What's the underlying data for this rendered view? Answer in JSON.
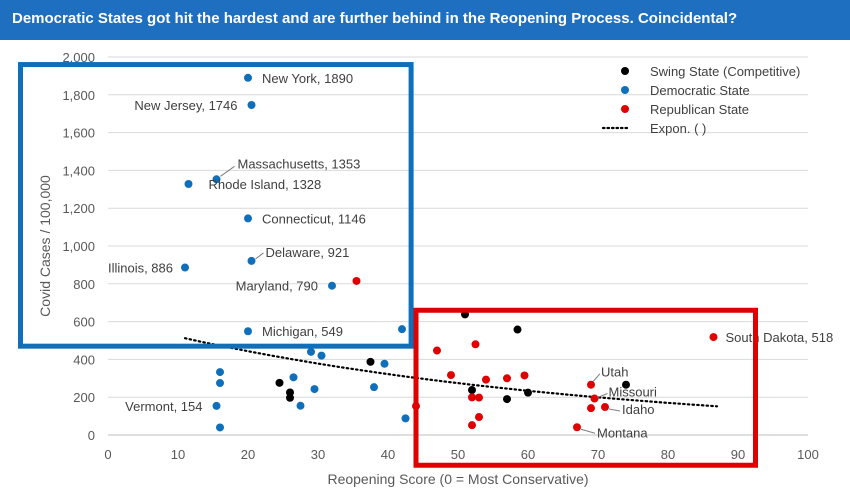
{
  "title": "Democratic States got hit the hardest and are further behind in the Reopening Process. Coincidental?",
  "colors": {
    "title_bg": "#1f6fc0",
    "swing": "#000000",
    "democratic": "#0f6fba",
    "republican": "#e00000",
    "blue_box": "#0f6fba",
    "red_box": "#e00000"
  },
  "chart_data": {
    "type": "scatter",
    "xlabel": "Reopening Score (0 = Most Conservative)",
    "ylabel": "Covid Cases / 100,000",
    "xlim": [
      0,
      100
    ],
    "ylim": [
      0,
      2000
    ],
    "x_ticks": [
      "0",
      "10",
      "20",
      "30",
      "40",
      "50",
      "60",
      "70",
      "80",
      "90",
      "100"
    ],
    "y_ticks": [
      "0",
      "200",
      "400",
      "600",
      "800",
      "1,000",
      "1,200",
      "1,400",
      "1,600",
      "1,800",
      "2,000"
    ],
    "grid": true,
    "legend": {
      "position": "top-right",
      "entries": [
        {
          "label": "Swing State (Competitive)",
          "color": "#000000",
          "kind": "marker"
        },
        {
          "label": "Democratic State",
          "color": "#0f6fba",
          "kind": "marker"
        },
        {
          "label": "Republican State",
          "color": "#e00000",
          "kind": "marker"
        },
        {
          "label": "Expon. ( )",
          "color": "#000000",
          "kind": "dotted-line"
        }
      ]
    },
    "trendline": {
      "type": "exponential",
      "x_start": 11,
      "x_end": 87,
      "y_start": 512,
      "y_end": 152
    },
    "series": [
      {
        "name": "Swing State (Competitive)",
        "color": "#000000",
        "points": [
          {
            "x": 24.5,
            "y": 276
          },
          {
            "x": 26,
            "y": 225
          },
          {
            "x": 26,
            "y": 197
          },
          {
            "x": 37.5,
            "y": 387
          },
          {
            "x": 51,
            "y": 638
          },
          {
            "x": 52,
            "y": 238
          },
          {
            "x": 57,
            "y": 190
          },
          {
            "x": 58.5,
            "y": 558
          },
          {
            "x": 60,
            "y": 224
          },
          {
            "x": 74,
            "y": 266
          }
        ]
      },
      {
        "name": "Democratic State",
        "color": "#0f6fba",
        "points": [
          {
            "x": 20,
            "y": 1890,
            "label": "New York, 1890"
          },
          {
            "x": 20.5,
            "y": 1746,
            "label": "New Jersey, 1746"
          },
          {
            "x": 15.5,
            "y": 1353,
            "label": "Massachusetts, 1353"
          },
          {
            "x": 11.5,
            "y": 1328,
            "label": "Rhode Island, 1328"
          },
          {
            "x": 20,
            "y": 1146,
            "label": "Connecticut, 1146"
          },
          {
            "x": 20.5,
            "y": 921,
            "label": "Delaware, 921"
          },
          {
            "x": 11,
            "y": 886,
            "label": "Illinois, 886"
          },
          {
            "x": 32,
            "y": 790,
            "label": "Maryland, 790"
          },
          {
            "x": 20,
            "y": 549,
            "label": "Michigan, 549"
          },
          {
            "x": 15.5,
            "y": 154,
            "label": "Vermont, 154"
          },
          {
            "x": 16,
            "y": 333
          },
          {
            "x": 16,
            "y": 275
          },
          {
            "x": 16,
            "y": 40
          },
          {
            "x": 26.5,
            "y": 305
          },
          {
            "x": 27.5,
            "y": 155
          },
          {
            "x": 29,
            "y": 440
          },
          {
            "x": 30.5,
            "y": 420
          },
          {
            "x": 29.5,
            "y": 243
          },
          {
            "x": 38,
            "y": 253
          },
          {
            "x": 39.5,
            "y": 377
          },
          {
            "x": 42,
            "y": 560
          },
          {
            "x": 42.5,
            "y": 88
          }
        ]
      },
      {
        "name": "Republican State",
        "color": "#e00000",
        "points": [
          {
            "x": 35.5,
            "y": 815
          },
          {
            "x": 86.5,
            "y": 518,
            "label": "South Dakota, 518"
          },
          {
            "x": 69,
            "y": 266,
            "label": "Utah"
          },
          {
            "x": 69.5,
            "y": 193,
            "label": "Missouri"
          },
          {
            "x": 71,
            "y": 148,
            "label": "Idaho"
          },
          {
            "x": 67,
            "y": 41,
            "label": "Montana"
          },
          {
            "x": 44,
            "y": 153
          },
          {
            "x": 47,
            "y": 447
          },
          {
            "x": 49,
            "y": 317
          },
          {
            "x": 52,
            "y": 199
          },
          {
            "x": 52,
            "y": 52
          },
          {
            "x": 52.5,
            "y": 480
          },
          {
            "x": 53,
            "y": 198
          },
          {
            "x": 53,
            "y": 95
          },
          {
            "x": 54,
            "y": 293
          },
          {
            "x": 57,
            "y": 300
          },
          {
            "x": 59.5,
            "y": 315
          },
          {
            "x": 69,
            "y": 142
          }
        ]
      }
    ],
    "annotations": [
      {
        "type": "box",
        "color": "#0f6fba",
        "x_range": [
          -12.5,
          43.3
        ],
        "y_range": [
          470,
          1960
        ],
        "note": "democratic-cluster"
      },
      {
        "type": "box",
        "color": "#e00000",
        "x_range": [
          44,
          92.5
        ],
        "y_range": [
          -160,
          660
        ],
        "note": "reopened-cluster"
      }
    ]
  }
}
